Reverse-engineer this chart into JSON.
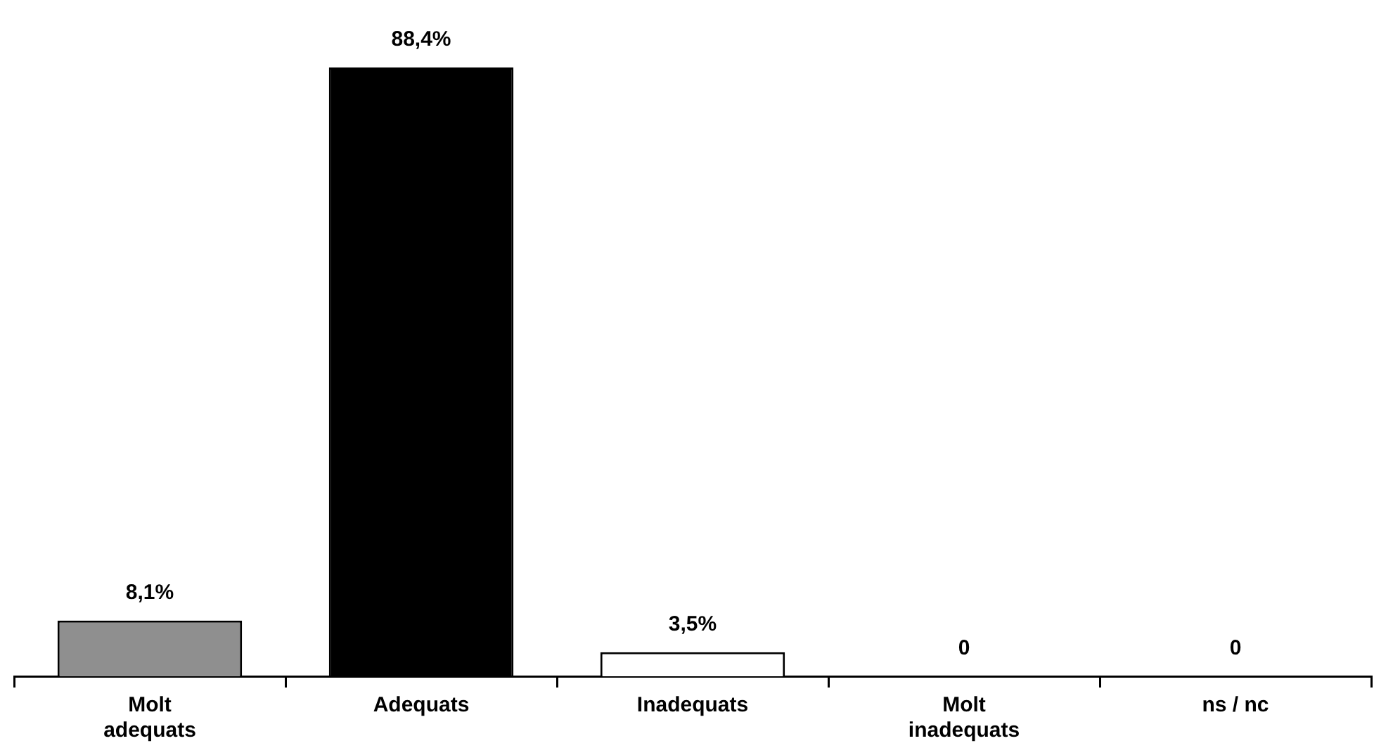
{
  "chart_data": {
    "type": "bar",
    "tick_labels": "x",
    "categories": [
      "Molt adequats",
      "Adequats",
      "Inadequats",
      "Molt inadequats",
      "ns / nc"
    ],
    "values": [
      8.1,
      88.4,
      3.5,
      0,
      0
    ],
    "value_labels": [
      "8,1%",
      "88,4%",
      "3,5%",
      "0",
      "0"
    ],
    "colors": [
      "#8f8f8f",
      "#000000",
      "#ffffff",
      "#ffffff",
      "#ffffff"
    ],
    "grid": false,
    "legend": false
  }
}
